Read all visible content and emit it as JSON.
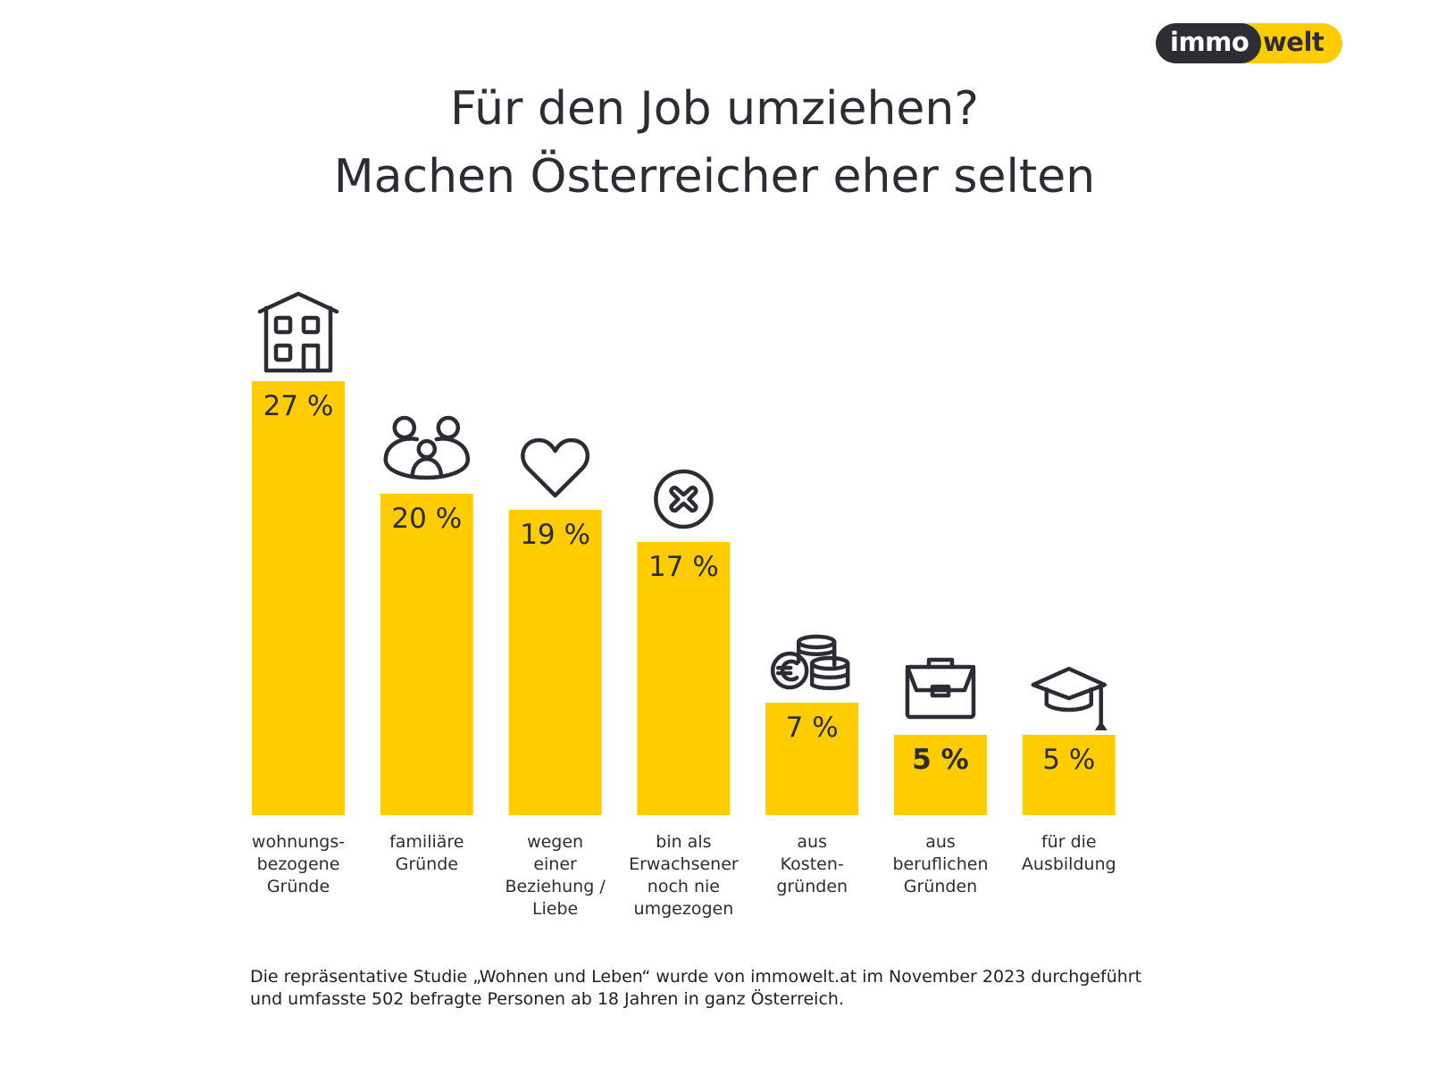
{
  "logo": {
    "part1": "immo",
    "part2": "welt"
  },
  "title": {
    "line1": "Für den Job umziehen?",
    "line2": "Machen Österreicher eher selten"
  },
  "colors": {
    "bar": "#ffcc00",
    "text": "#2c2c35",
    "logo_dark": "#2d2d35"
  },
  "chart_data": {
    "type": "bar",
    "title": "Für den Job umziehen? Machen Österreicher eher selten",
    "xlabel": "",
    "ylabel": "",
    "ylim": [
      0,
      27
    ],
    "grid": false,
    "legend": "none",
    "unit": "%",
    "categories": [
      "wohnungs-bezogene Gründe",
      "familiäre Gründe",
      "wegen einer Beziehung / Liebe",
      "bin als Erwachsener noch nie umgezogen",
      "aus Kosten-gründen",
      "aus beruflichen Gründen",
      "für die Ausbildung"
    ],
    "category_lines": [
      [
        "wohnungs-",
        "bezogene",
        "Gründe"
      ],
      [
        "familiäre",
        "Gründe"
      ],
      [
        "wegen",
        "einer",
        "Beziehung /",
        "Liebe"
      ],
      [
        "bin als",
        "Erwachsener",
        "noch nie",
        "umgezogen"
      ],
      [
        "aus",
        "Kosten-",
        "gründen"
      ],
      [
        "aus",
        "beruflichen",
        "Gründen"
      ],
      [
        "für die",
        "Ausbildung"
      ]
    ],
    "values": [
      27,
      20,
      19,
      17,
      7,
      5,
      5
    ],
    "data_labels": [
      "27 %",
      "20 %",
      "19 %",
      "17 %",
      "7 %",
      "5 %",
      "5 %"
    ],
    "highlighted": [
      false,
      false,
      false,
      false,
      false,
      true,
      false
    ],
    "icons": [
      "house-icon",
      "family-icon",
      "heart-icon",
      "cross-circle-icon",
      "euro-coins-icon",
      "briefcase-icon",
      "graduation-cap-icon"
    ]
  },
  "footnote": {
    "line1": "Die repräsentative Studie „Wohnen und Leben“ wurde von immowelt.at im November 2023 durchgeführt",
    "line2": "und umfasste 502 befragte Personen ab 18 Jahren in ganz Österreich."
  }
}
